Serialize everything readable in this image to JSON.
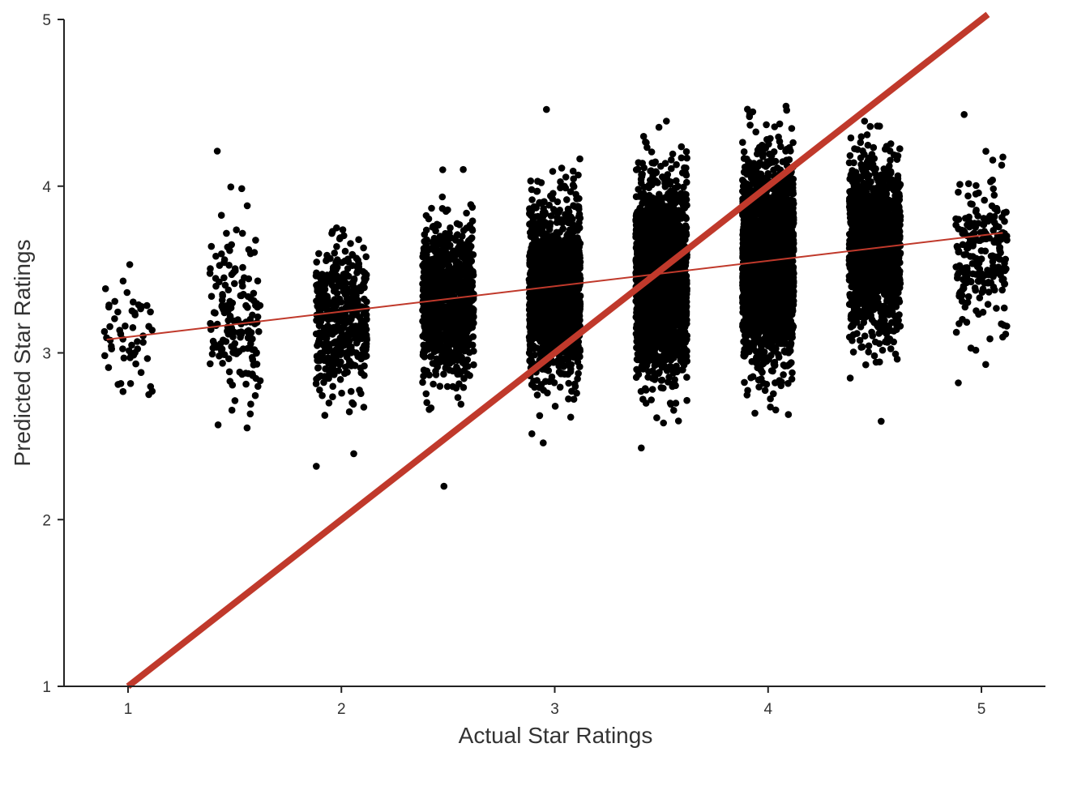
{
  "chart_data": {
    "type": "scatter",
    "title": "",
    "xlabel": "Actual Star Ratings",
    "ylabel": "Predicted Star Ratings",
    "xlim": [
      0.7,
      5.3
    ],
    "ylim": [
      1,
      5
    ],
    "x_ticks": [
      1,
      2,
      3,
      4,
      5
    ],
    "y_ticks": [
      1,
      2,
      3,
      4,
      5
    ],
    "grid": false,
    "legend": "none",
    "jitter_half_width": 0.12,
    "point_color": "#000000",
    "groups": [
      {
        "x": 1.0,
        "n": 55,
        "mean": 3.1,
        "sd": 0.17,
        "min": 2.75,
        "max": 3.53
      },
      {
        "x": 1.5,
        "n": 160,
        "mean": 3.18,
        "sd": 0.25,
        "min": 2.55,
        "max": 4.21
      },
      {
        "x": 2.0,
        "n": 450,
        "mean": 3.22,
        "sd": 0.22,
        "min": 2.32,
        "max": 3.75
      },
      {
        "x": 2.5,
        "n": 1000,
        "mean": 3.3,
        "sd": 0.22,
        "min": 2.2,
        "max": 4.1
      },
      {
        "x": 3.0,
        "n": 1700,
        "mean": 3.38,
        "sd": 0.25,
        "min": 2.46,
        "max": 4.46
      },
      {
        "x": 3.5,
        "n": 2400,
        "mean": 3.45,
        "sd": 0.27,
        "min": 2.43,
        "max": 4.39
      },
      {
        "x": 4.0,
        "n": 2700,
        "mean": 3.55,
        "sd": 0.28,
        "min": 2.63,
        "max": 4.48
      },
      {
        "x": 4.5,
        "n": 1400,
        "mean": 3.63,
        "sd": 0.25,
        "min": 2.59,
        "max": 4.39
      },
      {
        "x": 5.0,
        "n": 230,
        "mean": 3.58,
        "sd": 0.22,
        "min": 2.82,
        "max": 4.43
      }
    ],
    "lines": [
      {
        "kind": "identity",
        "x": [
          1.0,
          5.03
        ],
        "y": [
          1.0,
          5.03
        ],
        "color": "#c0392b",
        "width": 8
      },
      {
        "kind": "regression",
        "x": [
          0.9,
          5.1
        ],
        "y": [
          3.08,
          3.72
        ],
        "color": "#c0392b",
        "width": 2
      }
    ]
  }
}
